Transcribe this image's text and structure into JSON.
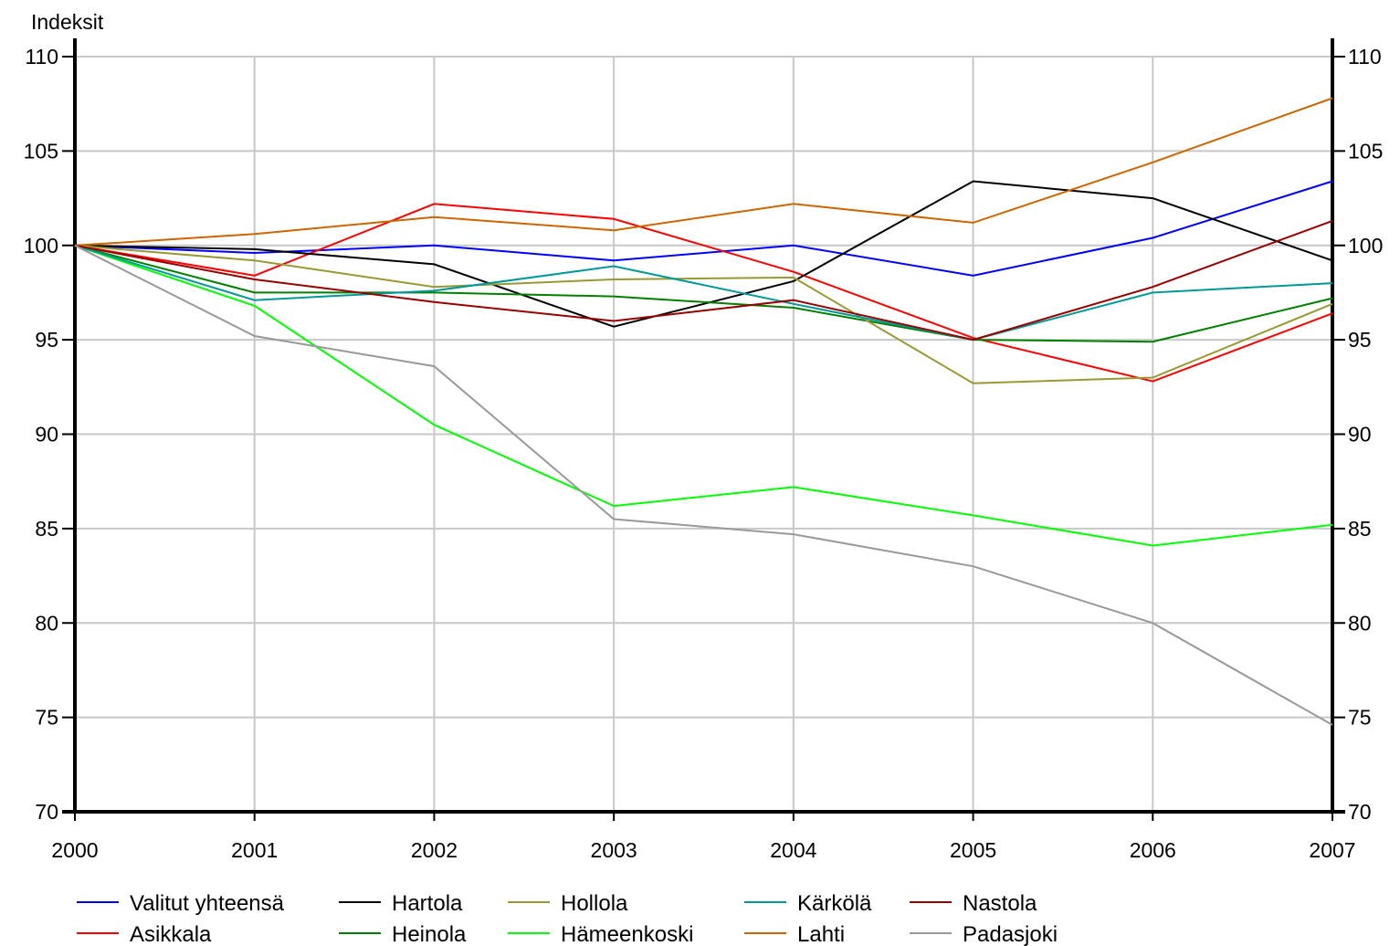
{
  "chart_data": {
    "type": "line",
    "ylabel": "Indeksit",
    "ylim": [
      70,
      110
    ],
    "yticks": [
      70,
      75,
      80,
      85,
      90,
      95,
      100,
      105,
      110
    ],
    "x": [
      "2000",
      "2001",
      "2002",
      "2003",
      "2004",
      "2005",
      "2006",
      "2007"
    ],
    "grid": true,
    "legend_position": "bottom",
    "series": [
      {
        "name": "Valitut yhteensä",
        "color": "#0000ff",
        "values": [
          100,
          99.6,
          100,
          99.2,
          100,
          98.4,
          100.4,
          103.4
        ]
      },
      {
        "name": "Asikkala",
        "color": "#ff0000",
        "values": [
          100,
          98.4,
          102.2,
          101.4,
          98.6,
          95.1,
          92.8,
          96.4
        ]
      },
      {
        "name": "Hartola",
        "color": "#000000",
        "values": [
          100,
          99.8,
          99,
          95.7,
          98.1,
          103.4,
          102.5,
          99.2
        ]
      },
      {
        "name": "Heinola",
        "color": "#008000",
        "values": [
          100,
          97.5,
          97.5,
          97.3,
          96.7,
          95,
          94.9,
          97.2
        ]
      },
      {
        "name": "Hollola",
        "color": "#999933",
        "values": [
          100,
          99.2,
          97.8,
          98.2,
          98.3,
          92.7,
          93,
          96.9
        ]
      },
      {
        "name": "Hämeenkoski",
        "color": "#00ff00",
        "values": [
          100,
          96.8,
          90.5,
          86.2,
          87.2,
          85.7,
          84.1,
          85.2
        ]
      },
      {
        "name": "Kärkölä",
        "color": "#009999",
        "values": [
          100,
          97.1,
          97.6,
          98.9,
          96.9,
          95,
          97.5,
          98
        ]
      },
      {
        "name": "Lahti",
        "color": "#cc6600",
        "values": [
          100,
          100.6,
          101.5,
          100.8,
          102.2,
          101.2,
          104.4,
          107.8
        ]
      },
      {
        "name": "Nastola",
        "color": "#990000",
        "values": [
          100,
          98.2,
          97,
          96,
          97.1,
          95,
          97.8,
          101.3
        ]
      },
      {
        "name": "Padasjoki",
        "color": "#999999",
        "values": [
          100,
          95.2,
          93.6,
          85.5,
          84.7,
          83,
          80,
          74.6
        ]
      }
    ],
    "legend_layout": [
      [
        "Valitut yhteensä",
        "Hartola",
        "Hollola",
        "Kärkölä",
        "Nastola"
      ],
      [
        "Asikkala",
        "Heinola",
        "Hämeenkoski",
        "Lahti",
        "Padasjoki"
      ]
    ]
  }
}
